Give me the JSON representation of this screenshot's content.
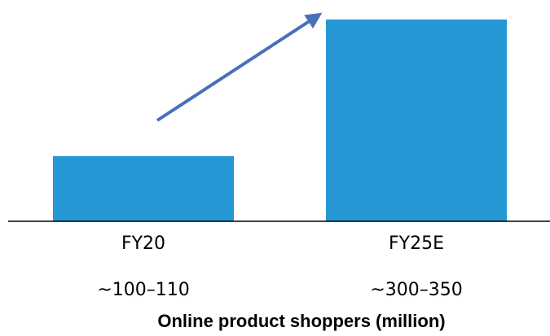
{
  "chart_data": {
    "type": "bar",
    "title": "Online product shoppers (million)",
    "categories": [
      "FY20",
      "FY25E"
    ],
    "values": [
      105,
      325
    ],
    "value_labels": [
      "~100–110",
      "~300–350"
    ],
    "color": "#2597d5"
  }
}
